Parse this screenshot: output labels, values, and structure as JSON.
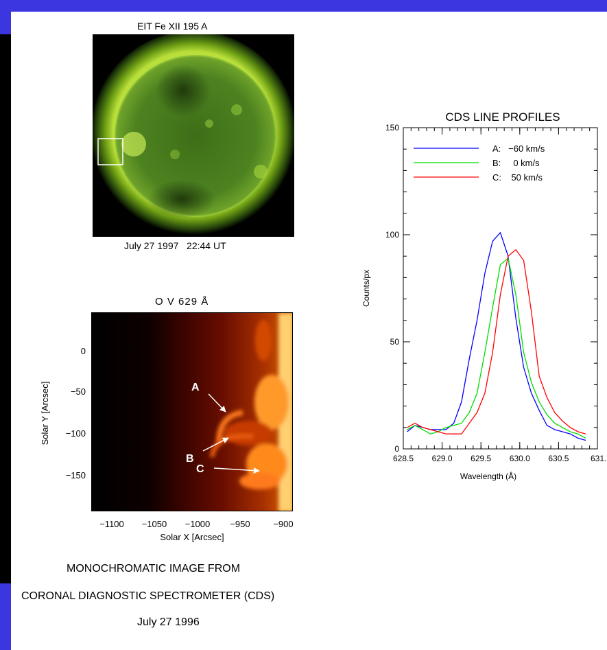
{
  "eit": {
    "title": "EIT Fe XII 195 A",
    "caption": "July 27 1997   22:44 UT"
  },
  "ov": {
    "title": "O V 629 Å",
    "xlabel": "Solar X [Arcsec]",
    "ylabel": "Solar Y [Arcsec]",
    "xticks": [
      "−1100",
      "−1050",
      "−1000",
      "−950",
      "−900"
    ],
    "yticks": [
      "0",
      "−50",
      "−100",
      "−150"
    ],
    "labels": [
      "A",
      "B",
      "C"
    ]
  },
  "footer": {
    "line1": "MONOCHROMATIC IMAGE FROM",
    "line2": "CORONAL DIAGNOSTIC SPECTROMETER (CDS)",
    "line3": "July 27 1996"
  },
  "colors": {
    "frame": "#3c36e0",
    "series_a": "#0000ff",
    "series_b": "#00dd00",
    "series_c": "#ff0000"
  },
  "chart_data": {
    "type": "line",
    "title": "CDS LINE PROFILES",
    "xlabel": "Wavelength (Å)",
    "ylabel": "Counts/px",
    "xlim": [
      628.5,
      631.0
    ],
    "ylim": [
      0,
      150
    ],
    "xtick_labels": [
      "628.5",
      "629.0",
      "629.5",
      "630.0",
      "630.5",
      "631."
    ],
    "ytick_labels": [
      "0",
      "50",
      "100",
      "150"
    ],
    "legend_position": "top-left",
    "series": [
      {
        "name": "A:   −60 km/s",
        "color": "#0000ff",
        "x": [
          628.55,
          628.65,
          628.75,
          628.85,
          628.95,
          629.05,
          629.15,
          629.25,
          629.35,
          629.45,
          629.55,
          629.65,
          629.75,
          629.85,
          629.95,
          630.05,
          630.15,
          630.25,
          630.35,
          630.45,
          630.55,
          630.65,
          630.75,
          630.85
        ],
        "y": [
          8,
          11,
          10,
          9,
          9,
          9,
          12,
          22,
          42,
          60,
          82,
          97,
          101,
          90,
          61,
          38,
          26,
          18,
          11,
          9,
          8,
          7,
          5,
          4
        ]
      },
      {
        "name": "B:     0 km/s",
        "color": "#00dd00",
        "x": [
          628.55,
          628.65,
          628.75,
          628.85,
          628.95,
          629.05,
          629.15,
          629.25,
          629.35,
          629.45,
          629.55,
          629.65,
          629.75,
          629.85,
          629.95,
          630.05,
          630.15,
          630.25,
          630.35,
          630.45,
          630.55,
          630.65,
          630.75,
          630.85
        ],
        "y": [
          9,
          11,
          9,
          7,
          8,
          10,
          11,
          12,
          17,
          26,
          45,
          66,
          86,
          89,
          72,
          45,
          31,
          22,
          16,
          12,
          10,
          8,
          7,
          5
        ]
      },
      {
        "name": "C:    50 km/s",
        "color": "#ff0000",
        "x": [
          628.55,
          628.65,
          628.75,
          628.85,
          628.95,
          629.05,
          629.15,
          629.25,
          629.35,
          629.45,
          629.55,
          629.65,
          629.75,
          629.85,
          629.95,
          630.05,
          630.15,
          630.25,
          630.35,
          630.45,
          630.55,
          630.65,
          630.75,
          630.85
        ],
        "y": [
          10,
          12,
          10,
          9,
          8,
          7,
          7,
          7,
          12,
          17,
          26,
          45,
          72,
          90,
          93,
          88,
          64,
          34,
          24,
          17,
          13,
          10,
          8,
          7
        ]
      }
    ]
  }
}
